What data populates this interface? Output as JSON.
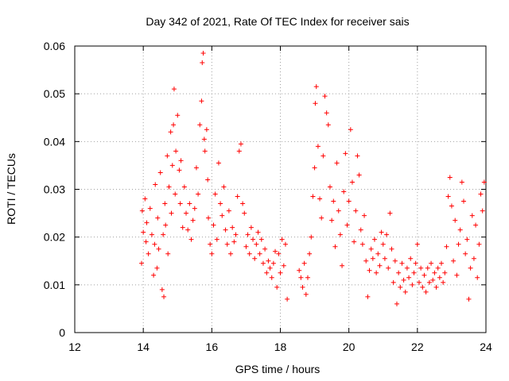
{
  "chart_data": {
    "type": "scatter",
    "title": "Day 342 of 2021, Rate Of TEC Index for receiver sais",
    "xlabel": "GPS time / hours",
    "ylabel": "ROTI / TECUs",
    "xlim": [
      12,
      24
    ],
    "ylim": [
      0,
      0.06
    ],
    "xticks": [
      12,
      14,
      16,
      18,
      20,
      22,
      24
    ],
    "xtick_labels": [
      "12",
      "14",
      "16",
      "18",
      "20",
      "22",
      "24"
    ],
    "yticks": [
      0,
      0.01,
      0.02,
      0.03,
      0.04,
      0.05,
      0.06
    ],
    "ytick_labels": [
      "0",
      "0.01",
      "0.02",
      "0.03",
      "0.04",
      "0.05",
      "0.06"
    ],
    "grid": true,
    "marker": "plus",
    "color": "#ff0000",
    "series": [
      {
        "name": "ROTI",
        "points": [
          [
            13.95,
            0.0145
          ],
          [
            13.97,
            0.0255
          ],
          [
            14.0,
            0.021
          ],
          [
            14.05,
            0.028
          ],
          [
            14.08,
            0.019
          ],
          [
            14.1,
            0.023
          ],
          [
            14.15,
            0.0165
          ],
          [
            14.2,
            0.026
          ],
          [
            14.25,
            0.0205
          ],
          [
            14.3,
            0.012
          ],
          [
            14.33,
            0.0185
          ],
          [
            14.35,
            0.031
          ],
          [
            14.4,
            0.0135
          ],
          [
            14.42,
            0.024
          ],
          [
            14.45,
            0.0175
          ],
          [
            14.5,
            0.0335
          ],
          [
            14.55,
            0.009
          ],
          [
            14.58,
            0.0205
          ],
          [
            14.6,
            0.0075
          ],
          [
            14.63,
            0.027
          ],
          [
            14.65,
            0.0225
          ],
          [
            14.7,
            0.037
          ],
          [
            14.72,
            0.0165
          ],
          [
            14.75,
            0.0305
          ],
          [
            14.8,
            0.042
          ],
          [
            14.82,
            0.025
          ],
          [
            14.85,
            0.035
          ],
          [
            14.88,
            0.0435
          ],
          [
            14.9,
            0.051
          ],
          [
            14.93,
            0.029
          ],
          [
            14.95,
            0.038
          ],
          [
            15.0,
            0.0455
          ],
          [
            15.05,
            0.034
          ],
          [
            15.08,
            0.027
          ],
          [
            15.1,
            0.036
          ],
          [
            15.15,
            0.022
          ],
          [
            15.2,
            0.0305
          ],
          [
            15.25,
            0.025
          ],
          [
            15.3,
            0.0215
          ],
          [
            15.35,
            0.027
          ],
          [
            15.4,
            0.0195
          ],
          [
            15.45,
            0.0235
          ],
          [
            15.5,
            0.026
          ],
          [
            15.55,
            0.0345
          ],
          [
            15.6,
            0.029
          ],
          [
            15.65,
            0.0435
          ],
          [
            15.7,
            0.0485
          ],
          [
            15.72,
            0.0565
          ],
          [
            15.75,
            0.0585
          ],
          [
            15.78,
            0.0405
          ],
          [
            15.8,
            0.038
          ],
          [
            15.85,
            0.0425
          ],
          [
            15.88,
            0.032
          ],
          [
            15.9,
            0.024
          ],
          [
            15.95,
            0.0185
          ],
          [
            16.0,
            0.0165
          ],
          [
            16.05,
            0.0225
          ],
          [
            16.1,
            0.029
          ],
          [
            16.15,
            0.0195
          ],
          [
            16.2,
            0.0355
          ],
          [
            16.25,
            0.027
          ],
          [
            16.3,
            0.0245
          ],
          [
            16.35,
            0.0305
          ],
          [
            16.4,
            0.0215
          ],
          [
            16.45,
            0.0185
          ],
          [
            16.5,
            0.0255
          ],
          [
            16.55,
            0.0165
          ],
          [
            16.6,
            0.022
          ],
          [
            16.65,
            0.019
          ],
          [
            16.7,
            0.0205
          ],
          [
            16.75,
            0.0285
          ],
          [
            16.8,
            0.038
          ],
          [
            16.85,
            0.0395
          ],
          [
            16.9,
            0.027
          ],
          [
            16.95,
            0.025
          ],
          [
            17.0,
            0.018
          ],
          [
            17.05,
            0.0205
          ],
          [
            17.1,
            0.0165
          ],
          [
            17.15,
            0.022
          ],
          [
            17.2,
            0.0195
          ],
          [
            17.25,
            0.0155
          ],
          [
            17.3,
            0.0185
          ],
          [
            17.35,
            0.021
          ],
          [
            17.4,
            0.0165
          ],
          [
            17.45,
            0.0195
          ],
          [
            17.5,
            0.0145
          ],
          [
            17.55,
            0.0175
          ],
          [
            17.6,
            0.0125
          ],
          [
            17.65,
            0.015
          ],
          [
            17.7,
            0.0135
          ],
          [
            17.75,
            0.0115
          ],
          [
            17.8,
            0.0145
          ],
          [
            17.85,
            0.017
          ],
          [
            17.9,
            0.0095
          ],
          [
            17.95,
            0.0165
          ],
          [
            18.0,
            0.0125
          ],
          [
            18.05,
            0.0195
          ],
          [
            18.1,
            0.014
          ],
          [
            18.15,
            0.0185
          ],
          [
            18.2,
            0.007
          ],
          [
            18.55,
            0.013
          ],
          [
            18.6,
            0.0115
          ],
          [
            18.65,
            0.0095
          ],
          [
            18.7,
            0.0145
          ],
          [
            18.75,
            0.008
          ],
          [
            18.8,
            0.0115
          ],
          [
            18.85,
            0.0165
          ],
          [
            18.9,
            0.02
          ],
          [
            18.95,
            0.0285
          ],
          [
            19.0,
            0.0345
          ],
          [
            19.02,
            0.048
          ],
          [
            19.05,
            0.0515
          ],
          [
            19.1,
            0.039
          ],
          [
            19.15,
            0.028
          ],
          [
            19.2,
            0.024
          ],
          [
            19.25,
            0.037
          ],
          [
            19.3,
            0.0495
          ],
          [
            19.35,
            0.046
          ],
          [
            19.4,
            0.0435
          ],
          [
            19.45,
            0.0305
          ],
          [
            19.5,
            0.0235
          ],
          [
            19.55,
            0.0275
          ],
          [
            19.6,
            0.018
          ],
          [
            19.65,
            0.0355
          ],
          [
            19.7,
            0.0255
          ],
          [
            19.75,
            0.0205
          ],
          [
            19.8,
            0.014
          ],
          [
            19.85,
            0.0295
          ],
          [
            19.9,
            0.0375
          ],
          [
            19.95,
            0.0225
          ],
          [
            20.0,
            0.0275
          ],
          [
            20.05,
            0.0425
          ],
          [
            20.1,
            0.0315
          ],
          [
            20.15,
            0.019
          ],
          [
            20.2,
            0.0255
          ],
          [
            20.25,
            0.037
          ],
          [
            20.3,
            0.033
          ],
          [
            20.35,
            0.0215
          ],
          [
            20.4,
            0.0185
          ],
          [
            20.45,
            0.0245
          ],
          [
            20.5,
            0.015
          ],
          [
            20.55,
            0.0075
          ],
          [
            20.6,
            0.013
          ],
          [
            20.65,
            0.0175
          ],
          [
            20.7,
            0.0155
          ],
          [
            20.75,
            0.0195
          ],
          [
            20.8,
            0.0125
          ],
          [
            20.85,
            0.0165
          ],
          [
            20.9,
            0.014
          ],
          [
            20.95,
            0.021
          ],
          [
            21.0,
            0.0185
          ],
          [
            21.05,
            0.0155
          ],
          [
            21.1,
            0.0205
          ],
          [
            21.15,
            0.0135
          ],
          [
            21.2,
            0.025
          ],
          [
            21.25,
            0.0175
          ],
          [
            21.3,
            0.0105
          ],
          [
            21.35,
            0.015
          ],
          [
            21.4,
            0.006
          ],
          [
            21.45,
            0.0125
          ],
          [
            21.5,
            0.0095
          ],
          [
            21.55,
            0.0145
          ],
          [
            21.6,
            0.011
          ],
          [
            21.65,
            0.0085
          ],
          [
            21.7,
            0.0135
          ],
          [
            21.75,
            0.0115
          ],
          [
            21.8,
            0.0155
          ],
          [
            21.85,
            0.01
          ],
          [
            21.9,
            0.0125
          ],
          [
            21.95,
            0.0145
          ],
          [
            22.0,
            0.0185
          ],
          [
            22.05,
            0.0105
          ],
          [
            22.1,
            0.0135
          ],
          [
            22.15,
            0.0095
          ],
          [
            22.2,
            0.012
          ],
          [
            22.25,
            0.0085
          ],
          [
            22.3,
            0.0135
          ],
          [
            22.35,
            0.0105
          ],
          [
            22.4,
            0.0145
          ],
          [
            22.45,
            0.011
          ],
          [
            22.5,
            0.0125
          ],
          [
            22.55,
            0.0095
          ],
          [
            22.6,
            0.0135
          ],
          [
            22.65,
            0.0115
          ],
          [
            22.7,
            0.0145
          ],
          [
            22.75,
            0.0105
          ],
          [
            22.8,
            0.0125
          ],
          [
            22.85,
            0.018
          ],
          [
            22.9,
            0.0285
          ],
          [
            22.95,
            0.0325
          ],
          [
            23.0,
            0.0265
          ],
          [
            23.05,
            0.015
          ],
          [
            23.1,
            0.0235
          ],
          [
            23.15,
            0.012
          ],
          [
            23.2,
            0.0185
          ],
          [
            23.25,
            0.0215
          ],
          [
            23.3,
            0.0315
          ],
          [
            23.35,
            0.0275
          ],
          [
            23.4,
            0.0165
          ],
          [
            23.45,
            0.0195
          ],
          [
            23.5,
            0.007
          ],
          [
            23.55,
            0.0135
          ],
          [
            23.6,
            0.0245
          ],
          [
            23.65,
            0.0155
          ],
          [
            23.7,
            0.0225
          ],
          [
            23.75,
            0.0115
          ],
          [
            23.8,
            0.0185
          ],
          [
            23.85,
            0.029
          ],
          [
            23.9,
            0.0255
          ],
          [
            23.95,
            0.0315
          ]
        ]
      }
    ]
  }
}
